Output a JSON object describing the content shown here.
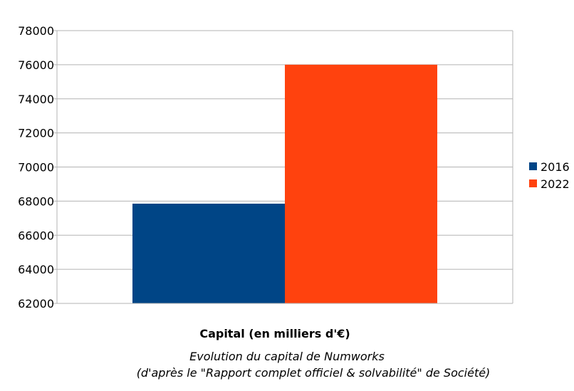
{
  "chart_data": {
    "type": "bar",
    "categories": [
      ""
    ],
    "series": [
      {
        "name": "2016",
        "values": [
          67850
        ],
        "color": "#004586"
      },
      {
        "name": "2022",
        "values": [
          76000
        ],
        "color": "#ff420e"
      }
    ],
    "xlabel": "Capital (en milliers d'€)",
    "ylabel": "",
    "ylim": [
      62000,
      78000
    ],
    "yticks": [
      62000,
      64000,
      66000,
      68000,
      70000,
      72000,
      74000,
      76000,
      78000
    ],
    "grid": true,
    "legend": "right",
    "caption_lines": [
      "Evolution du capital de Numworks",
      "(d'après le \"Rapport complet officiel & solvabilité\" de Société)"
    ]
  }
}
